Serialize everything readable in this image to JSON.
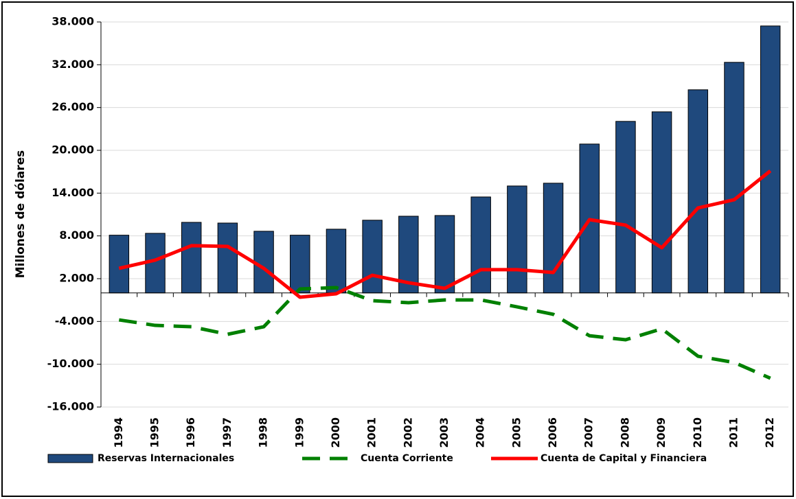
{
  "chart_data": {
    "type": "bar",
    "y_label": "Millones de dólares",
    "categories": [
      "1994",
      "1995",
      "1996",
      "1997",
      "1998",
      "1999",
      "2000",
      "2001",
      "2002",
      "2003",
      "2004",
      "2005",
      "2006",
      "2007",
      "2008",
      "2009",
      "2010",
      "2011",
      "2012"
    ],
    "series": [
      {
        "name": "Reservas Internacionales",
        "type": "bar",
        "color": "#1f497d",
        "values": [
          8100,
          8360,
          9900,
          9800,
          8650,
          8100,
          8940,
          10200,
          10760,
          10860,
          13460,
          15000,
          15390,
          20880,
          24060,
          25400,
          28490,
          32340,
          37440
        ]
      },
      {
        "name": "Cuenta Corriente",
        "type": "line",
        "dashed": true,
        "color": "#008000",
        "values": [
          -3780,
          -4550,
          -4740,
          -5800,
          -4740,
          560,
          750,
          -1080,
          -1370,
          -980,
          -980,
          -1950,
          -3000,
          -6000,
          -6570,
          -5030,
          -8880,
          -9750,
          -11960
        ]
      },
      {
        "name": "Cuenta de Capital y Financiera",
        "type": "line",
        "color": "#ff0000",
        "values": [
          3450,
          4600,
          6630,
          6530,
          3450,
          -600,
          -120,
          2480,
          1430,
          650,
          3260,
          3260,
          2870,
          10280,
          9510,
          6340,
          11920,
          13070,
          17120
        ]
      }
    ],
    "ylim": [
      -16000,
      38000
    ],
    "yticks": [
      {
        "value": -16000,
        "label": "-16.000"
      },
      {
        "value": -10000,
        "label": "-10.000"
      },
      {
        "value": -4000,
        "label": "-4.000"
      },
      {
        "value": 2000,
        "label": "2.000"
      },
      {
        "value": 8000,
        "label": "8.000"
      },
      {
        "value": 14000,
        "label": "14.000"
      },
      {
        "value": 20000,
        "label": "20.000"
      },
      {
        "value": 26000,
        "label": "26.000"
      },
      {
        "value": 32000,
        "label": "32.000"
      },
      {
        "value": 38000,
        "label": "38.000"
      }
    ],
    "grid": true
  }
}
